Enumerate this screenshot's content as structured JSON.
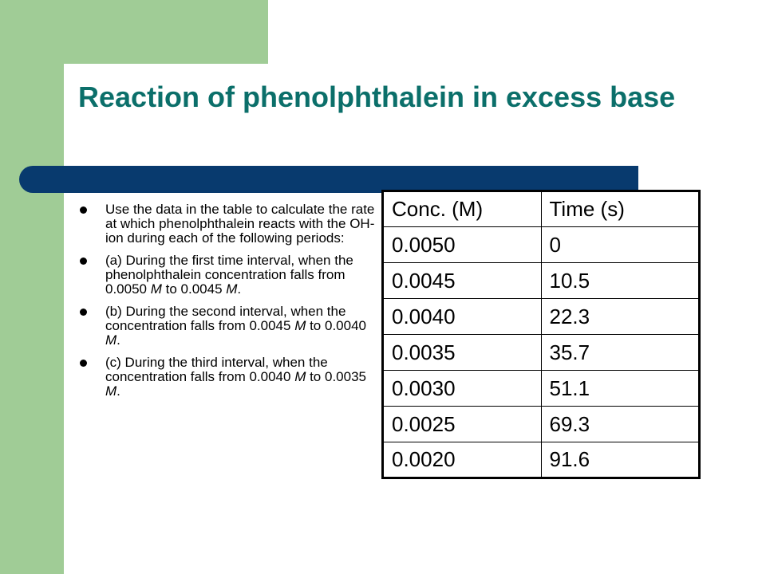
{
  "slide": {
    "title": "Reaction of phenolphthalein in excess base",
    "bullets": [
      {
        "parts": [
          "Use the data in the table to calculate the rate at which phenolphthalein reacts with the OH- ion during each of the following periods:"
        ]
      },
      {
        "parts": [
          "(a) During the first time interval, when the phenolphthalein concentration falls from 0.0050 ",
          "M",
          " to 0.0045 ",
          "M",
          "."
        ]
      },
      {
        "parts": [
          "(b) During the second interval, when the concentration falls from 0.0045 ",
          "M",
          " to 0.0040 ",
          "M",
          "."
        ]
      },
      {
        "parts": [
          "(c) During the third interval, when the concentration falls from 0.0040 ",
          "M",
          " to 0.0035 ",
          "M",
          "."
        ]
      }
    ]
  },
  "table": {
    "headers": [
      "Conc. (M)",
      "Time (s)"
    ],
    "rows": [
      [
        "0.0050",
        "0"
      ],
      [
        "0.0045",
        "10.5"
      ],
      [
        "0.0040",
        "22.3"
      ],
      [
        "0.0035",
        "35.7"
      ],
      [
        "0.0030",
        "51.1"
      ],
      [
        "0.0025",
        "69.3"
      ],
      [
        "0.0020",
        "91.6"
      ]
    ]
  }
}
